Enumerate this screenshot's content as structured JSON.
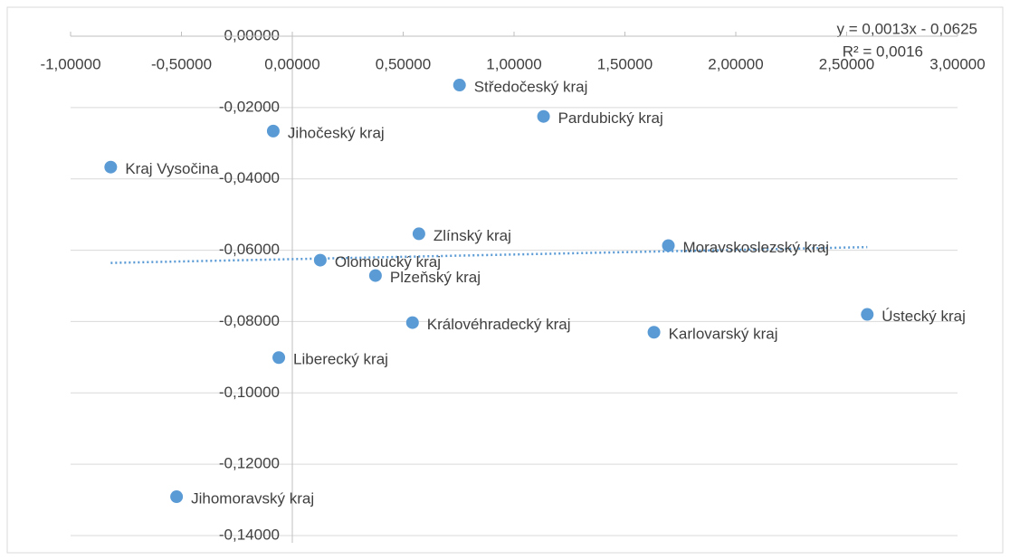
{
  "chart_data": {
    "type": "scatter",
    "color": "#5b9bd5",
    "labels": [
      "Středočeský kraj",
      "Pardubický kraj",
      "Jihočeský kraj",
      "Kraj Vysočina",
      "Zlínský kraj",
      "Moravskoslezský kraj",
      "Olomoucký kraj",
      "Plzeňský kraj",
      "Královéhradecký kraj",
      "Ústecký kraj",
      "Karlovarský kraj",
      "Liberecký kraj",
      "Jihomoravský kraj"
    ],
    "x": [
      0.754,
      1.133,
      -0.086,
      -0.819,
      0.571,
      1.696,
      0.126,
      0.375,
      0.542,
      2.593,
      1.631,
      -0.061,
      -0.522
    ],
    "values": [
      -0.0137,
      -0.0225,
      -0.0266,
      -0.0367,
      -0.0554,
      -0.0587,
      -0.0628,
      -0.0671,
      -0.0803,
      -0.078,
      -0.083,
      -0.0901,
      -0.1291
    ],
    "xlim": [
      -1,
      3
    ],
    "ylim": [
      -0.14,
      0
    ],
    "xticks": [
      {
        "value": -1,
        "label": "-1,00000"
      },
      {
        "value": -0.5,
        "label": "-0,50000"
      },
      {
        "value": 0,
        "label": "0,00000"
      },
      {
        "value": 0.5,
        "label": "0,50000"
      },
      {
        "value": 1,
        "label": "1,00000"
      },
      {
        "value": 1.5,
        "label": "1,50000"
      },
      {
        "value": 2,
        "label": "2,00000"
      },
      {
        "value": 2.5,
        "label": "2,50000"
      },
      {
        "value": 3,
        "label": "3,00000"
      }
    ],
    "yticks": [
      {
        "value": 0,
        "label": "0,00000"
      },
      {
        "value": -0.02,
        "label": "-0,02000"
      },
      {
        "value": -0.04,
        "label": "-0,04000"
      },
      {
        "value": -0.06,
        "label": "-0,06000"
      },
      {
        "value": -0.08,
        "label": "-0,08000"
      },
      {
        "value": -0.1,
        "label": "-0,10000"
      },
      {
        "value": -0.12,
        "label": "-0,12000"
      },
      {
        "value": -0.14,
        "label": "-0,14000"
      }
    ],
    "grid": true,
    "trendline": {
      "slope": 0.0013,
      "intercept": -0.0625,
      "equation": "y = 0,0013x - 0,0625",
      "r2": "R² = 0,0016"
    }
  }
}
